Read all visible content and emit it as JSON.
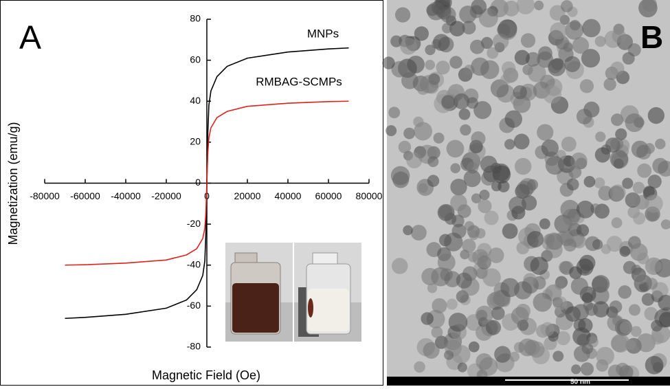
{
  "chart_data": {
    "type": "line",
    "panel_label": "A",
    "xlabel": "Magnetic Field (Oe)",
    "ylabel": "Magnetization (emu/g)",
    "x": [
      -70000,
      -60000,
      -40000,
      -20000,
      -10000,
      -5000,
      -2000,
      -1000,
      -500,
      0,
      500,
      1000,
      2000,
      5000,
      10000,
      20000,
      40000,
      60000,
      70000
    ],
    "series": [
      {
        "name": "MNPs",
        "color": "#000000",
        "values": [
          -66,
          -65.5,
          -64,
          -61,
          -57,
          -52,
          -45,
          -38,
          -25,
          0,
          25,
          38,
          45,
          52,
          57,
          61,
          64,
          65.5,
          66
        ]
      },
      {
        "name": "RMBAG-SCMPs",
        "color": "#e0201b",
        "values": [
          -40,
          -39.8,
          -39,
          -37.5,
          -35,
          -32,
          -27,
          -22,
          -15,
          0,
          15,
          22,
          27,
          32,
          35,
          37.5,
          39,
          39.8,
          40
        ]
      }
    ],
    "xlim": [
      -80000,
      80000
    ],
    "ylim": [
      -80,
      80
    ],
    "xticks": [
      -80000,
      -60000,
      -40000,
      -20000,
      0,
      20000,
      40000,
      60000,
      80000
    ],
    "yticks": [
      -80,
      -60,
      -40,
      -20,
      0,
      20,
      40,
      60,
      80
    ]
  },
  "image": {
    "panel_label": "B",
    "scale_bar": "50 nm"
  }
}
